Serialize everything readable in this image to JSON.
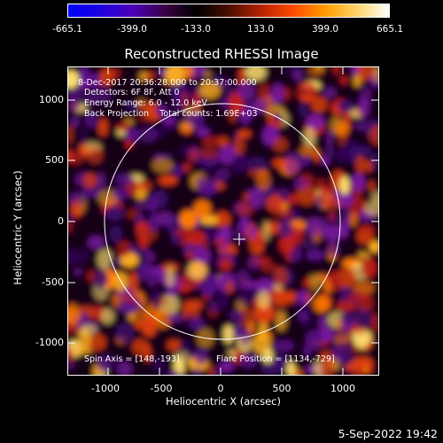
{
  "colorbar": {
    "ticks": [
      "-665.1",
      "-399.0",
      "-133.0",
      "133.0",
      "399.0",
      "665.1"
    ],
    "colors": [
      "#0000ff",
      "#1c00e0",
      "#4a00b8",
      "#3a0048",
      "#000000",
      "#4a0e00",
      "#b52200",
      "#ff4a00",
      "#ff9a00",
      "#ffd46a",
      "#ffffff"
    ]
  },
  "title": "Reconstructed RHESSI Image",
  "annotations": {
    "time": "8-Dec-2017 20:36:28.000 to 20:37:00.000",
    "detectors": "Detectors: 6F 8F, Att 0",
    "energy": "Energy Range: 6.0 - 12.0 keV",
    "method": "Back Projection    Total counts: 1.69E+03",
    "spin_axis": "Spin Axis = [148,-193]",
    "flare_position": "Flare Position = [1134,-729]"
  },
  "axes": {
    "xlabel": "Heliocentric X (arcsec)",
    "ylabel": "Heliocentric Y (arcsec)",
    "xticks": [
      "-1000",
      "-500",
      "0",
      "500",
      "1000"
    ],
    "yticks": [
      "1000",
      "500",
      "0",
      "-500",
      "-1000"
    ]
  },
  "datestamp": "5-Sep-2022 19:42"
}
